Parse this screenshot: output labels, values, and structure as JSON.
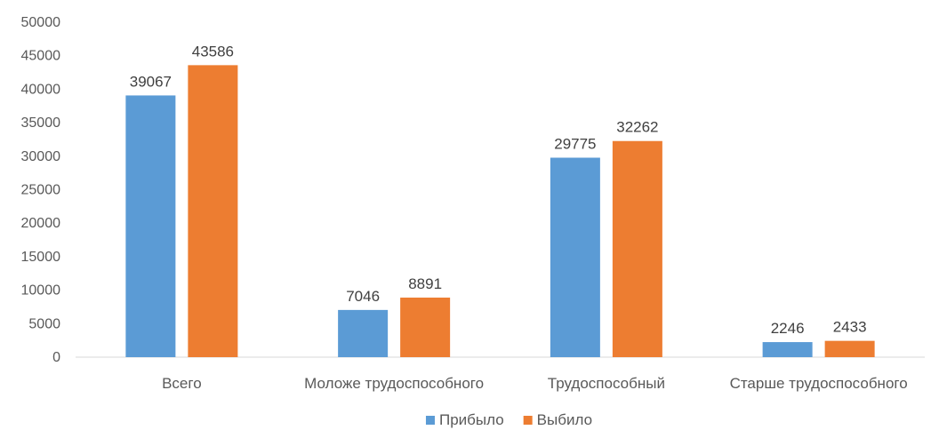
{
  "chart_data": {
    "type": "bar",
    "title": "",
    "xlabel": "",
    "ylabel": "",
    "categories": [
      "Всего",
      "Моложе трудоспособного",
      "Трудоспособный",
      "Старше трудоспособного"
    ],
    "series": [
      {
        "name": "Прибыло",
        "values": [
          39067,
          7046,
          29775,
          2246
        ],
        "color": "#5b9bd5"
      },
      {
        "name": "Выбило",
        "values": [
          43586,
          8891,
          32262,
          2433
        ],
        "color": "#ed7d31"
      }
    ],
    "ylim": [
      0,
      50000
    ],
    "yticks": [
      0,
      5000,
      10000,
      15000,
      20000,
      25000,
      30000,
      35000,
      40000,
      45000,
      50000
    ],
    "grid": false,
    "data_labels": true,
    "legend_position": "bottom-center"
  }
}
